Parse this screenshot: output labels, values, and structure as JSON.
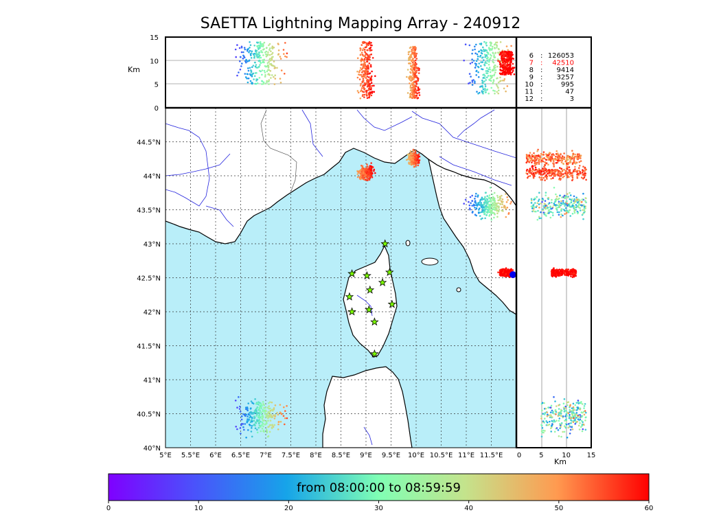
{
  "title": "SAETTA Lightning Mapping Array - 240912",
  "altitude_unit": "Km",
  "legend": [
    {
      "level": "6",
      "count": "126053",
      "highlight": false
    },
    {
      "level": "7",
      "count": "42510",
      "highlight": true
    },
    {
      "level": "8",
      "count": "9414",
      "highlight": false
    },
    {
      "level": "9",
      "count": "3257",
      "highlight": false
    },
    {
      "level": "10",
      "count": "995",
      "highlight": false
    },
    {
      "level": "11",
      "count": "47",
      "highlight": false
    },
    {
      "level": "12",
      "count": "3",
      "highlight": false
    }
  ],
  "colorbar": {
    "label": "from 08:00:00 to 08:59:59",
    "ticks": [
      "0",
      "10",
      "20",
      "30",
      "40",
      "50",
      "60"
    ],
    "range": [
      0,
      60
    ]
  },
  "colors": {
    "sea": "#b9eef9",
    "land": "#ffffff",
    "rivers": "#2222dd",
    "stations": "#7cfc00",
    "highlight": "#ff0000"
  },
  "chart_data": {
    "type": "scatter",
    "title": "SAETTA Lightning Mapping Array - 240912",
    "xlim": [
      5,
      12
    ],
    "ylim": [
      40,
      45
    ],
    "alt_lim": [
      0,
      15
    ],
    "xticks": [
      "5°E",
      "5.5°E",
      "6°E",
      "6.5°E",
      "7°E",
      "7.5°E",
      "8°E",
      "8.5°E",
      "9°E",
      "9.5°E",
      "10°E",
      "10.5°E",
      "11°E",
      "11.5°E"
    ],
    "yticks": [
      "40°N",
      "40.5°N",
      "41°N",
      "41.5°N",
      "42°N",
      "42.5°N",
      "43°N",
      "43.5°N",
      "44°N",
      "44.5°N"
    ],
    "alt_ticks": [
      "0",
      "5",
      "10",
      "15"
    ],
    "clusters": [
      {
        "lon": [
          6.3,
          7.5
        ],
        "lat": [
          40.1,
          40.8
        ],
        "alt": [
          5,
          14
        ],
        "time": [
          0,
          60
        ]
      },
      {
        "lon": [
          8.8,
          9.2
        ],
        "lat": [
          43.9,
          44.2
        ],
        "alt": [
          2,
          14
        ],
        "time": [
          45,
          60
        ]
      },
      {
        "lon": [
          9.8,
          10.1
        ],
        "lat": [
          44.1,
          44.4
        ],
        "alt": [
          2,
          13
        ],
        "time": [
          40,
          60
        ]
      },
      {
        "lon": [
          10.9,
          12.0
        ],
        "lat": [
          43.3,
          43.85
        ],
        "alt": [
          3,
          14
        ],
        "time": [
          0,
          60
        ]
      },
      {
        "lon": [
          11.6,
          12.0
        ],
        "lat": [
          42.5,
          42.65
        ],
        "alt": [
          7,
          12
        ],
        "time": [
          55,
          60
        ]
      }
    ],
    "stations": [
      {
        "lon": 9.38,
        "lat": 43.0
      },
      {
        "lon": 8.72,
        "lat": 42.56
      },
      {
        "lon": 9.02,
        "lat": 42.53
      },
      {
        "lon": 9.47,
        "lat": 42.58
      },
      {
        "lon": 9.33,
        "lat": 42.43
      },
      {
        "lon": 9.08,
        "lat": 42.32
      },
      {
        "lon": 8.67,
        "lat": 42.22
      },
      {
        "lon": 9.52,
        "lat": 42.11
      },
      {
        "lon": 8.72,
        "lat": 42.0
      },
      {
        "lon": 9.06,
        "lat": 42.03
      },
      {
        "lon": 9.17,
        "lat": 41.85
      },
      {
        "lon": 9.17,
        "lat": 41.38
      }
    ]
  }
}
